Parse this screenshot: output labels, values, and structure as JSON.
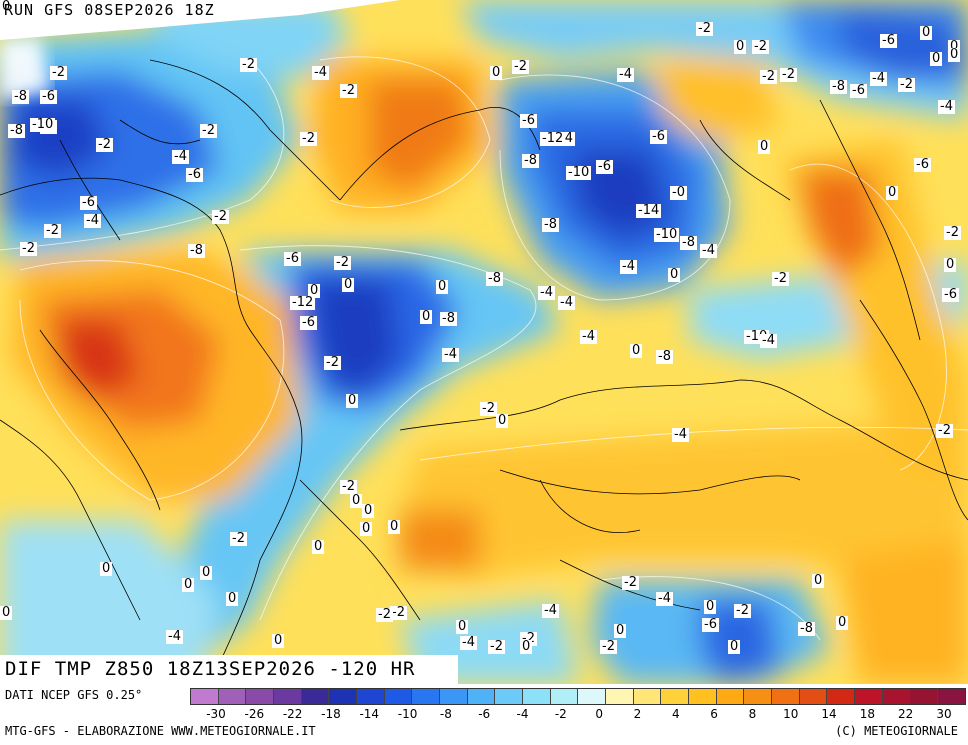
{
  "header": {
    "run_title": "RUN GFS 08SEP2026 18Z"
  },
  "map": {
    "field_title": "DIF TMP Z850 18Z13SEP2026 -120 HR",
    "iso_labels": [
      "-2",
      "-4",
      "-2",
      "0",
      "-2",
      "-4",
      "-8",
      "-2",
      "-6",
      "-8",
      "-6",
      "-4",
      "-2",
      "-8",
      "-6",
      "-10",
      "-2",
      "-6",
      "-4",
      "-2",
      "-2",
      "-8",
      "-12",
      "-6",
      "-6",
      "-4",
      "-10",
      "-6",
      "-0",
      "-8",
      "-6",
      "0",
      "-14",
      "-2",
      "-10",
      "-2",
      "-8",
      "-4",
      "-4",
      "-6",
      "0",
      "-2",
      "-2",
      "-2",
      "-6",
      "0",
      "-4",
      "-2",
      "-6",
      "-8",
      "0",
      "0",
      "-12",
      "-8",
      "-2",
      "0",
      "-4",
      "-4",
      "-6",
      "0",
      "-8",
      "-4",
      "0",
      "-2",
      "-2",
      "0",
      "-6",
      "-4",
      "-4",
      "-10",
      "-2",
      "0",
      "0",
      "-8",
      "-4",
      "-2",
      "0",
      "-4",
      "-2",
      "-2",
      "0",
      "0",
      "0",
      "0",
      "-2",
      "0",
      "0",
      "0",
      "0",
      "-2",
      "0",
      "0",
      "-4",
      "0",
      "-2",
      "-4",
      "-2",
      "-2",
      "0",
      "-2",
      "-4",
      "-2",
      "0",
      "-2",
      "-6",
      "-8",
      "0",
      "0",
      "0",
      "-4",
      "0",
      "0",
      "0",
      "-2",
      "0",
      "0",
      "0",
      "0",
      "0"
    ]
  },
  "legend": {
    "source": "DATI NCEP GFS 0.25°",
    "credit": "MTG-GFS - ELABORAZIONE WWW.METEOGIORNALE.IT",
    "copyright": "(C) METEOGIORNALE",
    "ticks": [
      "-30",
      "-26",
      "-22",
      "-18",
      "-14",
      "-10",
      "-8",
      "-6",
      "-4",
      "-2",
      "0",
      "2",
      "4",
      "6",
      "8",
      "10",
      "14",
      "18",
      "22",
      "30"
    ],
    "colors": [
      "#c07ad0",
      "#a060b8",
      "#8a4aa8",
      "#6a3aa0",
      "#3a2a98",
      "#1e32b4",
      "#1e46d2",
      "#1e5ae6",
      "#2876f0",
      "#3c96f5",
      "#4fb2f7",
      "#6ccaf8",
      "#8ce0f8",
      "#b0eef8",
      "#dcf8fa",
      "#fff6b4",
      "#ffe676",
      "#ffd23c",
      "#ffc020",
      "#ffaa14",
      "#f59014",
      "#f07014",
      "#e24e14",
      "#d22814",
      "#be1428",
      "#a8142d",
      "#961432",
      "#8a1440"
    ]
  }
}
